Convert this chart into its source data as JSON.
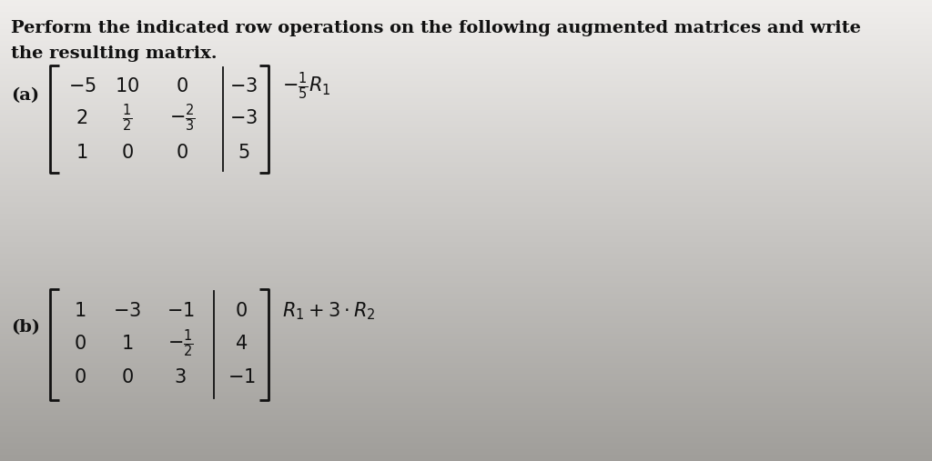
{
  "title_line1": "Perform the indicated row operations on the following augmented matrices and write",
  "title_line2": "the resulting matrix.",
  "bg_color_top": "#f0eeec",
  "bg_color_bottom": "#c8c4be",
  "text_color": "#111111",
  "part_a_label": "(a)",
  "part_b_label": "(b)",
  "matrix_a_op": "$-\\frac{1}{5}R_1$",
  "matrix_b_op": "$R_1+3\\cdot R_2$",
  "title_fontsize": 14,
  "matrix_fontsize": 15
}
